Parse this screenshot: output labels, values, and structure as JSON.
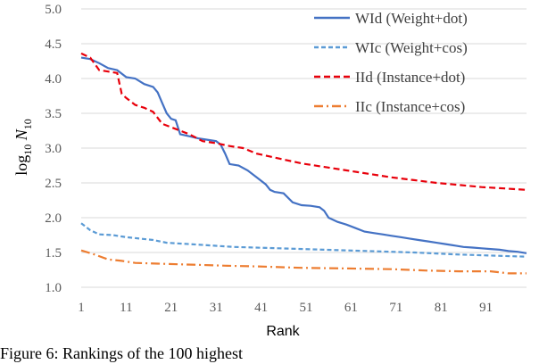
{
  "chart_data": {
    "type": "line",
    "xlabel": "Rank",
    "ylabel": {
      "prefix": "log",
      "sub1": "10",
      "mid": " N",
      "sub2": "10"
    },
    "xlim": [
      1,
      100
    ],
    "ylim": [
      1.0,
      5.0
    ],
    "x_ticks": [
      "1",
      "11",
      "21",
      "31",
      "41",
      "51",
      "61",
      "71",
      "81",
      "91"
    ],
    "y_ticks": [
      "1.0",
      "1.5",
      "2.0",
      "2.5",
      "3.0",
      "3.5",
      "4.0",
      "4.5",
      "5.0"
    ],
    "grid": "horizontal",
    "legend_position": "top-right",
    "series": [
      {
        "name": "WId (Weight+dot)",
        "color": "#4472C4",
        "dash": "solid",
        "points": [
          [
            1,
            4.3
          ],
          [
            3,
            4.28
          ],
          [
            5,
            4.22
          ],
          [
            7,
            4.15
          ],
          [
            9,
            4.12
          ],
          [
            11,
            4.02
          ],
          [
            13,
            4.0
          ],
          [
            15,
            3.92
          ],
          [
            17,
            3.88
          ],
          [
            18,
            3.8
          ],
          [
            19,
            3.65
          ],
          [
            20,
            3.5
          ],
          [
            21,
            3.42
          ],
          [
            22,
            3.4
          ],
          [
            23,
            3.2
          ],
          [
            25,
            3.17
          ],
          [
            27,
            3.14
          ],
          [
            29,
            3.12
          ],
          [
            31,
            3.1
          ],
          [
            32,
            3.05
          ],
          [
            33,
            2.92
          ],
          [
            34,
            2.77
          ],
          [
            36,
            2.75
          ],
          [
            38,
            2.68
          ],
          [
            40,
            2.58
          ],
          [
            42,
            2.48
          ],
          [
            43,
            2.4
          ],
          [
            44,
            2.37
          ],
          [
            46,
            2.35
          ],
          [
            48,
            2.22
          ],
          [
            50,
            2.18
          ],
          [
            52,
            2.17
          ],
          [
            54,
            2.15
          ],
          [
            55,
            2.1
          ],
          [
            56,
            2.0
          ],
          [
            58,
            1.94
          ],
          [
            60,
            1.9
          ],
          [
            62,
            1.85
          ],
          [
            64,
            1.8
          ],
          [
            66,
            1.78
          ],
          [
            68,
            1.76
          ],
          [
            70,
            1.74
          ],
          [
            72,
            1.72
          ],
          [
            74,
            1.7
          ],
          [
            76,
            1.68
          ],
          [
            78,
            1.66
          ],
          [
            80,
            1.64
          ],
          [
            82,
            1.62
          ],
          [
            84,
            1.6
          ],
          [
            86,
            1.58
          ],
          [
            88,
            1.57
          ],
          [
            90,
            1.56
          ],
          [
            92,
            1.55
          ],
          [
            94,
            1.54
          ],
          [
            96,
            1.52
          ],
          [
            98,
            1.51
          ],
          [
            100,
            1.49
          ]
        ]
      },
      {
        "name": "WIc (Weight+cos)",
        "color": "#5B9BD5",
        "dash": "5,3",
        "points": [
          [
            1,
            1.92
          ],
          [
            3,
            1.82
          ],
          [
            5,
            1.76
          ],
          [
            8,
            1.75
          ],
          [
            11,
            1.72
          ],
          [
            14,
            1.7
          ],
          [
            17,
            1.68
          ],
          [
            20,
            1.64
          ],
          [
            25,
            1.62
          ],
          [
            30,
            1.6
          ],
          [
            35,
            1.58
          ],
          [
            45,
            1.56
          ],
          [
            55,
            1.54
          ],
          [
            65,
            1.52
          ],
          [
            75,
            1.5
          ],
          [
            85,
            1.47
          ],
          [
            95,
            1.45
          ],
          [
            100,
            1.44
          ]
        ]
      },
      {
        "name": "IId (Instance+dot)",
        "color": "#E8000B",
        "dash": "7,4",
        "points": [
          [
            1,
            4.36
          ],
          [
            3,
            4.3
          ],
          [
            5,
            4.12
          ],
          [
            7,
            4.1
          ],
          [
            9,
            4.08
          ],
          [
            10,
            3.78
          ],
          [
            11,
            3.72
          ],
          [
            13,
            3.62
          ],
          [
            15,
            3.58
          ],
          [
            17,
            3.52
          ],
          [
            19,
            3.35
          ],
          [
            21,
            3.3
          ],
          [
            23,
            3.25
          ],
          [
            25,
            3.2
          ],
          [
            28,
            3.1
          ],
          [
            31,
            3.07
          ],
          [
            34,
            3.03
          ],
          [
            37,
            3.0
          ],
          [
            40,
            2.92
          ],
          [
            45,
            2.85
          ],
          [
            50,
            2.78
          ],
          [
            55,
            2.73
          ],
          [
            60,
            2.68
          ],
          [
            65,
            2.63
          ],
          [
            70,
            2.58
          ],
          [
            75,
            2.54
          ],
          [
            80,
            2.5
          ],
          [
            85,
            2.47
          ],
          [
            90,
            2.44
          ],
          [
            95,
            2.42
          ],
          [
            100,
            2.4
          ]
        ]
      },
      {
        "name": "IIc (Instance+cos)",
        "color": "#ED7D31",
        "dash": "10,4,2,4",
        "points": [
          [
            1,
            1.53
          ],
          [
            4,
            1.47
          ],
          [
            7,
            1.4
          ],
          [
            10,
            1.38
          ],
          [
            13,
            1.35
          ],
          [
            18,
            1.34
          ],
          [
            23,
            1.33
          ],
          [
            28,
            1.32
          ],
          [
            33,
            1.31
          ],
          [
            40,
            1.3
          ],
          [
            50,
            1.28
          ],
          [
            60,
            1.27
          ],
          [
            70,
            1.26
          ],
          [
            78,
            1.24
          ],
          [
            85,
            1.23
          ],
          [
            92,
            1.23
          ],
          [
            96,
            1.2
          ],
          [
            100,
            1.2
          ]
        ]
      }
    ]
  },
  "caption": "Figure 6:  Rankings of the 100 highest"
}
